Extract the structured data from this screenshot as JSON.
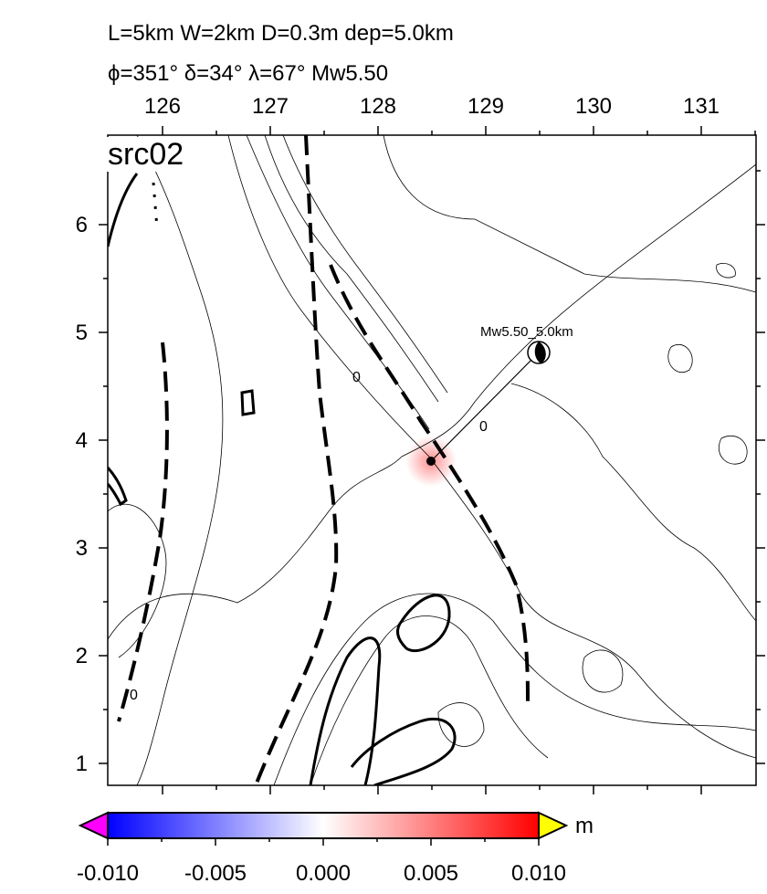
{
  "header": {
    "line1": "L=5km W=2km D=0.3m dep=5.0km",
    "line2": "ϕ=351° δ=34° λ=67° Mw5.50"
  },
  "map": {
    "label": "src02",
    "x_ticks": [
      "126",
      "127",
      "128",
      "129",
      "130",
      "131"
    ],
    "y_ticks": [
      "6",
      "5",
      "4",
      "3",
      "2",
      "1"
    ],
    "event_label": "Mw5.50_5.0km",
    "contour_labels": [
      "0",
      "0",
      "0"
    ]
  },
  "colorbar": {
    "ticks": [
      "-0.010",
      "-0.005",
      "0.000",
      "0.005",
      "0.010"
    ],
    "unit": "m"
  }
}
